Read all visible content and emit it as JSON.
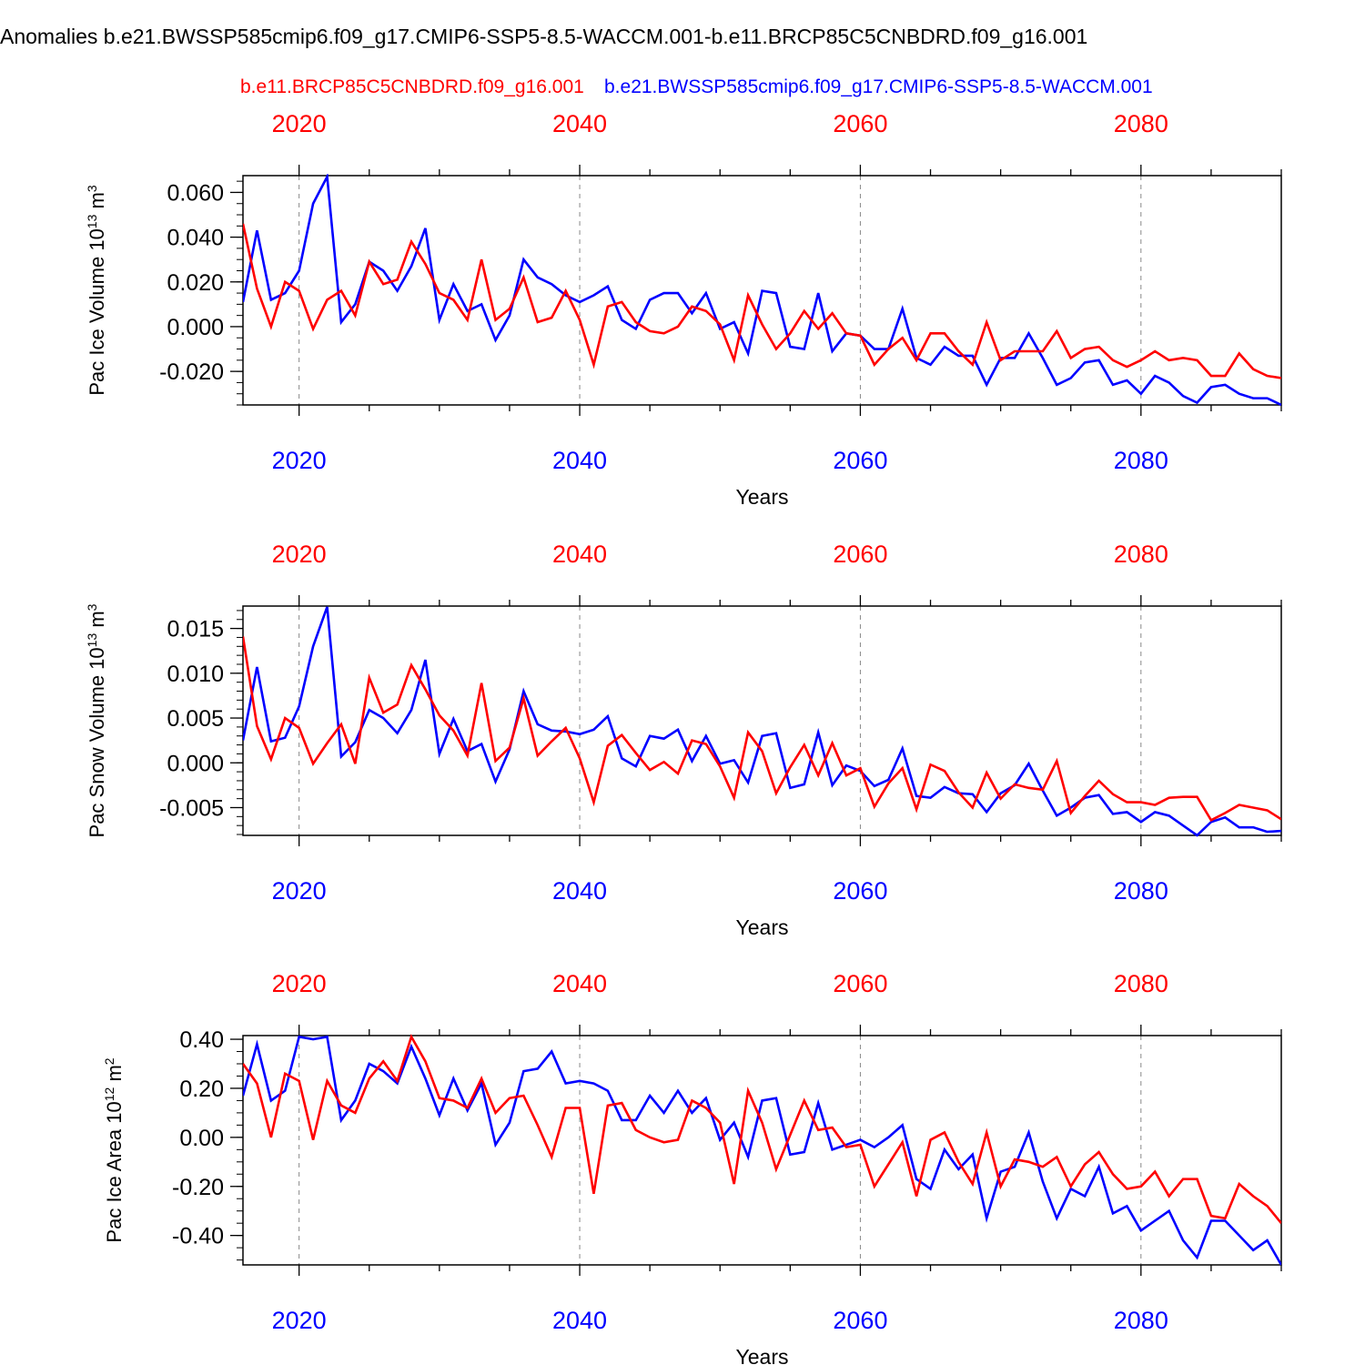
{
  "title": "Anomalies b.e21.BWSSP585cmip6.f09_g17.CMIP6-SSP5-8.5-WACCM.001-b.e11.BRCP85C5CNBDRD.f09_g16.001",
  "legend": {
    "red_label": "b.e11.BRCP85C5CNBDRD.f09_g16.001",
    "blue_label": "b.e21.BWSSP585cmip6.f09_g17.CMIP6-SSP5-8.5-WACCM.001"
  },
  "colors": {
    "red": "#ff0000",
    "blue": "#0000ff",
    "axis": "#000000",
    "grid": "#888888"
  },
  "chart_data": [
    {
      "type": "line",
      "ylabel_main": "Pac Ice Volume 10",
      "ylabel_exp": "13",
      "ylabel_unit": " m",
      "ylabel_unit_exp": "3",
      "xlabel": "Years",
      "xlim": [
        2016,
        2090
      ],
      "ylim": [
        -0.035,
        0.0675
      ],
      "yticks": [
        -0.02,
        0.0,
        0.02,
        0.04,
        0.06
      ],
      "ytick_labels": [
        "-0.020",
        "0.000",
        "0.020",
        "0.040",
        "0.060"
      ],
      "yminor_step": 0.005,
      "xticks": [
        2020,
        2040,
        2060,
        2080
      ],
      "xtick_labels": [
        "2020",
        "2040",
        "2060",
        "2080"
      ],
      "x_start": 2016,
      "series": [
        {
          "name": "b.e21.BWSSP585cmip6.f09_g17.CMIP6-SSP5-8.5-WACCM.001",
          "color": "blue",
          "values": [
            0.011,
            0.043,
            0.012,
            0.015,
            0.025,
            0.055,
            0.067,
            0.002,
            0.01,
            0.029,
            0.025,
            0.016,
            0.027,
            0.044,
            0.003,
            0.019,
            0.007,
            0.01,
            -0.006,
            0.005,
            0.03,
            0.022,
            0.019,
            0.014,
            0.011,
            0.014,
            0.018,
            0.003,
            -0.001,
            0.012,
            0.015,
            0.015,
            0.006,
            0.015,
            -0.001,
            0.002,
            -0.012,
            0.016,
            0.015,
            -0.009,
            -0.01,
            0.015,
            -0.011,
            -0.003,
            -0.004,
            -0.01,
            -0.01,
            0.008,
            -0.014,
            -0.017,
            -0.009,
            -0.013,
            -0.013,
            -0.026,
            -0.014,
            -0.014,
            -0.003,
            -0.014,
            -0.026,
            -0.023,
            -0.016,
            -0.015,
            -0.026,
            -0.024,
            -0.03,
            -0.022,
            -0.025,
            -0.031,
            -0.034,
            -0.027,
            -0.026,
            -0.03,
            -0.032,
            -0.032,
            -0.035
          ]
        },
        {
          "name": "b.e11.BRCP85C5CNBDRD.f09_g16.001",
          "color": "red",
          "values": [
            0.046,
            0.017,
            0.0,
            0.02,
            0.016,
            -0.001,
            0.012,
            0.016,
            0.005,
            0.029,
            0.019,
            0.021,
            0.038,
            0.028,
            0.015,
            0.012,
            0.003,
            0.03,
            0.003,
            0.008,
            0.022,
            0.002,
            0.004,
            0.016,
            0.003,
            -0.017,
            0.009,
            0.011,
            0.002,
            -0.002,
            -0.003,
            0.0,
            0.009,
            0.007,
            0.001,
            -0.015,
            0.014,
            0.001,
            -0.01,
            -0.003,
            0.007,
            -0.001,
            0.006,
            -0.003,
            -0.004,
            -0.017,
            -0.01,
            -0.005,
            -0.015,
            -0.003,
            -0.003,
            -0.011,
            -0.017,
            0.002,
            -0.015,
            -0.011,
            -0.011,
            -0.011,
            -0.002,
            -0.014,
            -0.01,
            -0.009,
            -0.015,
            -0.018,
            -0.015,
            -0.011,
            -0.015,
            -0.014,
            -0.015,
            -0.022,
            -0.022,
            -0.012,
            -0.019,
            -0.022,
            -0.023
          ]
        }
      ]
    },
    {
      "type": "line",
      "ylabel_main": "Pac Snow Volume 10",
      "ylabel_exp": "13",
      "ylabel_unit": " m",
      "ylabel_unit_exp": "3",
      "xlabel": "Years",
      "xlim": [
        2016,
        2090
      ],
      "ylim": [
        -0.0081,
        0.0175
      ],
      "yticks": [
        -0.005,
        0.0,
        0.005,
        0.01,
        0.015
      ],
      "ytick_labels": [
        "-0.005",
        "0.000",
        "0.005",
        "0.010",
        "0.015"
      ],
      "yminor_step": 0.001,
      "xticks": [
        2020,
        2040,
        2060,
        2080
      ],
      "xtick_labels": [
        "2020",
        "2040",
        "2060",
        "2080"
      ],
      "x_start": 2016,
      "series": [
        {
          "name": "b.e21.BWSSP585cmip6.f09_g17.CMIP6-SSP5-8.5-WACCM.001",
          "color": "blue",
          "values": [
            0.0025,
            0.0107,
            0.0024,
            0.0028,
            0.0063,
            0.013,
            0.0174,
            0.0007,
            0.0023,
            0.0059,
            0.005,
            0.0033,
            0.0059,
            0.0115,
            0.001,
            0.0049,
            0.0013,
            0.0021,
            -0.0021,
            0.0015,
            0.008,
            0.0043,
            0.0036,
            0.0035,
            0.0032,
            0.0037,
            0.0052,
            0.0005,
            -0.0004,
            0.003,
            0.0027,
            0.0037,
            0.0002,
            0.003,
            -0.0001,
            0.0003,
            -0.0022,
            0.003,
            0.0033,
            -0.0028,
            -0.0024,
            0.0034,
            -0.0025,
            -0.0003,
            -0.0009,
            -0.0026,
            -0.0019,
            0.0016,
            -0.0037,
            -0.0039,
            -0.0027,
            -0.0034,
            -0.0035,
            -0.0055,
            -0.0034,
            -0.0025,
            -0.0001,
            -0.0031,
            -0.0059,
            -0.005,
            -0.0039,
            -0.0036,
            -0.0057,
            -0.0055,
            -0.0066,
            -0.0055,
            -0.0059,
            -0.007,
            -0.0081,
            -0.0066,
            -0.0061,
            -0.0072,
            -0.0072,
            -0.0077,
            -0.0076
          ]
        },
        {
          "name": "b.e11.BRCP85C5CNBDRD.f09_g16.001",
          "color": "red",
          "values": [
            0.0141,
            0.0041,
            0.0004,
            0.005,
            0.0039,
            -0.0001,
            0.0022,
            0.0043,
            -0.0001,
            0.0095,
            0.0056,
            0.0065,
            0.0109,
            0.0082,
            0.0053,
            0.0036,
            0.0008,
            0.0089,
            0.0002,
            0.0017,
            0.0072,
            0.0008,
            0.0024,
            0.0039,
            0.0005,
            -0.0044,
            0.0019,
            0.0031,
            0.0011,
            -0.0008,
            0.0001,
            -0.0012,
            0.0025,
            0.0021,
            -0.0004,
            -0.0039,
            0.0034,
            0.0013,
            -0.0034,
            -0.0005,
            0.002,
            -0.0014,
            0.0022,
            -0.0014,
            -0.0006,
            -0.0049,
            -0.0023,
            -0.0006,
            -0.0052,
            -0.0002,
            -0.0009,
            -0.0033,
            -0.005,
            -0.0011,
            -0.004,
            -0.0024,
            -0.0028,
            -0.003,
            0.0002,
            -0.0056,
            -0.0037,
            -0.002,
            -0.0035,
            -0.0044,
            -0.0044,
            -0.0047,
            -0.0039,
            -0.0038,
            -0.0038,
            -0.0064,
            -0.0056,
            -0.0047,
            -0.005,
            -0.0053,
            -0.0063
          ]
        }
      ]
    },
    {
      "type": "line",
      "ylabel_main": "Pac Ice Area 10",
      "ylabel_exp": "12",
      "ylabel_unit": " m",
      "ylabel_unit_exp": "2",
      "xlabel": "Years",
      "xlim": [
        2016,
        2090
      ],
      "ylim": [
        -0.52,
        0.415
      ],
      "yticks": [
        -0.4,
        -0.2,
        0.0,
        0.2,
        0.4
      ],
      "ytick_labels": [
        "-0.40",
        "-0.20",
        "0.00",
        "0.20",
        "0.40"
      ],
      "yminor_step": 0.05,
      "xticks": [
        2020,
        2040,
        2060,
        2080
      ],
      "xtick_labels": [
        "2020",
        "2040",
        "2060",
        "2080"
      ],
      "x_start": 2016,
      "series": [
        {
          "name": "b.e21.BWSSP585cmip6.f09_g17.CMIP6-SSP5-8.5-WACCM.001",
          "color": "blue",
          "values": [
            0.17,
            0.38,
            0.15,
            0.19,
            0.41,
            0.4,
            0.41,
            0.07,
            0.15,
            0.3,
            0.27,
            0.22,
            0.37,
            0.24,
            0.09,
            0.24,
            0.11,
            0.22,
            -0.03,
            0.06,
            0.27,
            0.28,
            0.35,
            0.22,
            0.23,
            0.22,
            0.19,
            0.07,
            0.07,
            0.17,
            0.1,
            0.19,
            0.1,
            0.16,
            -0.01,
            0.06,
            -0.08,
            0.15,
            0.16,
            -0.07,
            -0.06,
            0.14,
            -0.05,
            -0.03,
            -0.01,
            -0.04,
            0.0,
            0.05,
            -0.17,
            -0.21,
            -0.05,
            -0.13,
            -0.07,
            -0.33,
            -0.14,
            -0.12,
            0.02,
            -0.18,
            -0.33,
            -0.21,
            -0.24,
            -0.12,
            -0.31,
            -0.28,
            -0.38,
            -0.34,
            -0.3,
            -0.42,
            -0.49,
            -0.34,
            -0.34,
            -0.4,
            -0.46,
            -0.42,
            -0.52
          ]
        },
        {
          "name": "b.e11.BRCP85C5CNBDRD.f09_g16.001",
          "color": "red",
          "values": [
            0.3,
            0.22,
            0.0,
            0.26,
            0.23,
            -0.01,
            0.23,
            0.13,
            0.1,
            0.24,
            0.31,
            0.23,
            0.41,
            0.31,
            0.16,
            0.15,
            0.12,
            0.24,
            0.1,
            0.16,
            0.17,
            0.05,
            -0.08,
            0.12,
            0.12,
            -0.23,
            0.13,
            0.14,
            0.03,
            0.0,
            -0.02,
            -0.01,
            0.15,
            0.12,
            0.06,
            -0.19,
            0.19,
            0.06,
            -0.13,
            0.01,
            0.15,
            0.03,
            0.04,
            -0.04,
            -0.03,
            -0.2,
            -0.11,
            -0.02,
            -0.24,
            -0.01,
            0.02,
            -0.1,
            -0.19,
            0.02,
            -0.2,
            -0.09,
            -0.1,
            -0.12,
            -0.08,
            -0.2,
            -0.11,
            -0.06,
            -0.15,
            -0.21,
            -0.2,
            -0.14,
            -0.24,
            -0.17,
            -0.17,
            -0.32,
            -0.33,
            -0.19,
            -0.24,
            -0.28,
            -0.35
          ]
        }
      ]
    }
  ]
}
